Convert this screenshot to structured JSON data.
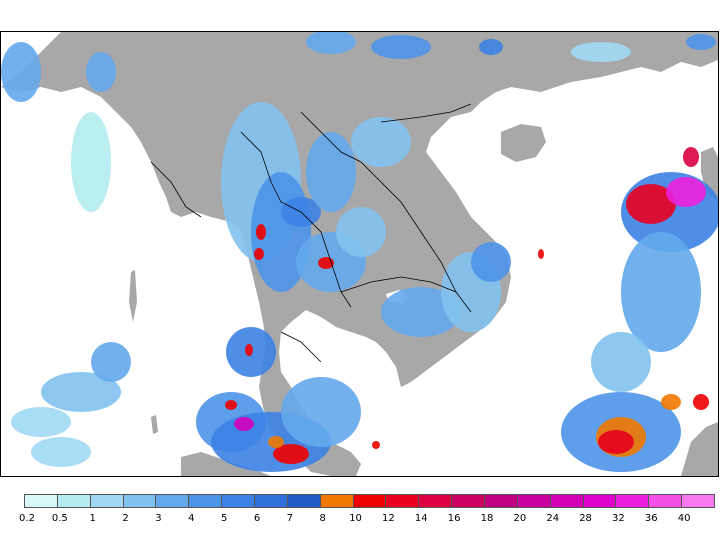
{
  "legend": {
    "bins": [
      {
        "label": "0.2",
        "color": "#d8f8f8"
      },
      {
        "label": "0.5",
        "color": "#b4ecf0"
      },
      {
        "label": "1",
        "color": "#a0d8f4"
      },
      {
        "label": "2",
        "color": "#82c2f0"
      },
      {
        "label": "3",
        "color": "#64a8ec"
      },
      {
        "label": "4",
        "color": "#4c94e8"
      },
      {
        "label": "5",
        "color": "#3c82e4"
      },
      {
        "label": "6",
        "color": "#2c70d8"
      },
      {
        "label": "7",
        "color": "#1e5cc4"
      },
      {
        "label": "8",
        "color": "#f07800"
      },
      {
        "label": "10",
        "color": "#f00000"
      },
      {
        "label": "12",
        "color": "#e8001e"
      },
      {
        "label": "14",
        "color": "#dc0040"
      },
      {
        "label": "16",
        "color": "#cc0060"
      },
      {
        "label": "18",
        "color": "#c00080"
      },
      {
        "label": "20",
        "color": "#c800a0"
      },
      {
        "label": "24",
        "color": "#d400b8"
      },
      {
        "label": "28",
        "color": "#e000cc"
      },
      {
        "label": "32",
        "color": "#ec20dc"
      },
      {
        "label": "36",
        "color": "#f450e8"
      },
      {
        "label": "40",
        "color": "#f878f0"
      }
    ]
  },
  "colors": {
    "land": "#a8a8a8",
    "ocean": "#ffffff",
    "border": "#000000"
  }
}
